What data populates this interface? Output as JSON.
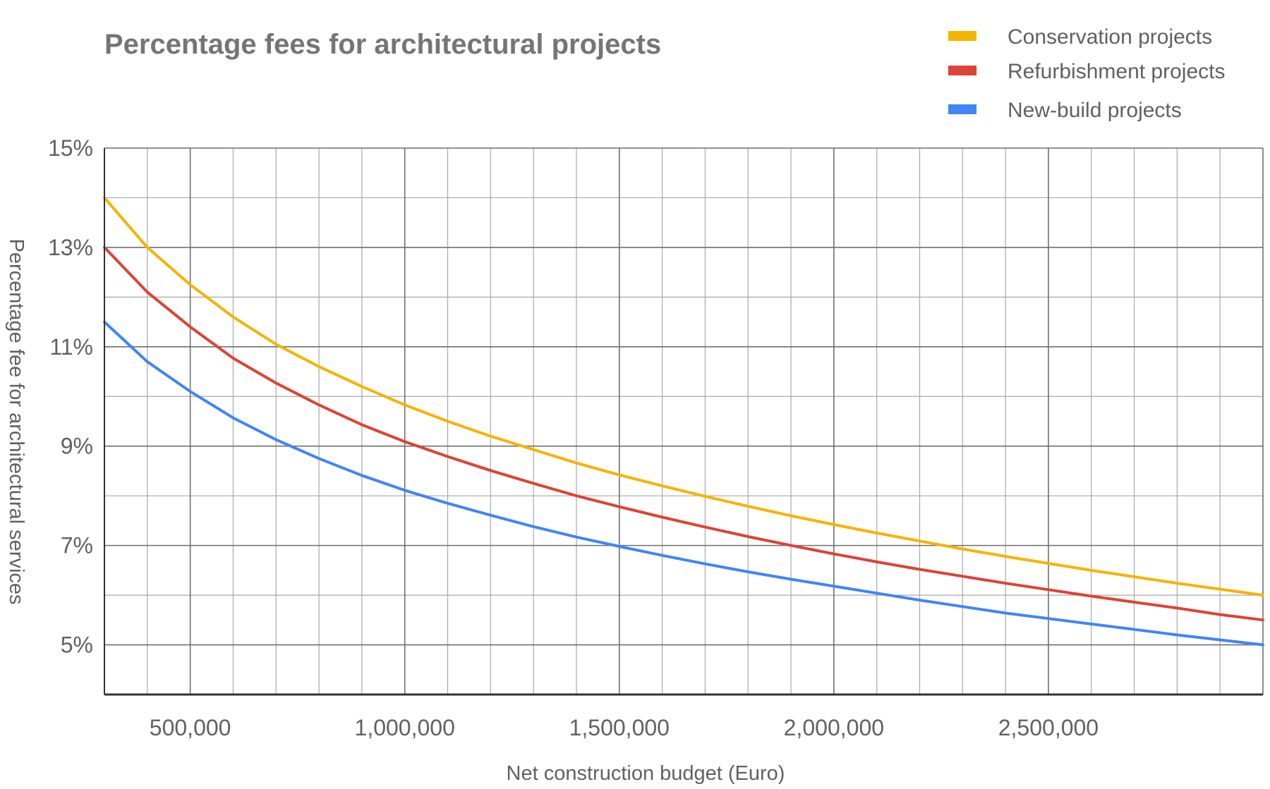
{
  "chart_data": {
    "type": "line",
    "title": "Percentage fees for architectural projects",
    "xlabel": "Net construction budget (Euro)",
    "ylabel": "Percentage fee for architectural services",
    "xlim": [
      300000,
      3000000
    ],
    "ylim": [
      4,
      15
    ],
    "x_ticks": [
      {
        "value": 500000,
        "label": "500,000"
      },
      {
        "value": 1000000,
        "label": "1,000,000"
      },
      {
        "value": 1500000,
        "label": "1,500,000"
      },
      {
        "value": 2000000,
        "label": "2,000,000"
      },
      {
        "value": 2500000,
        "label": "2,500,000"
      }
    ],
    "y_ticks": [
      {
        "value": 5,
        "label": "5%"
      },
      {
        "value": 7,
        "label": "7%"
      },
      {
        "value": 9,
        "label": "9%"
      },
      {
        "value": 11,
        "label": "11%"
      },
      {
        "value": 13,
        "label": "13%"
      },
      {
        "value": 15,
        "label": "15%"
      }
    ],
    "grid": true,
    "legend_position": "top-right",
    "x": [
      300000,
      400000,
      500000,
      600000,
      700000,
      800000,
      900000,
      1000000,
      1100000,
      1200000,
      1300000,
      1400000,
      1500000,
      1600000,
      1700000,
      1800000,
      1900000,
      2000000,
      2100000,
      2200000,
      2300000,
      2400000,
      2500000,
      2600000,
      2700000,
      2800000,
      2900000,
      3000000
    ],
    "series": [
      {
        "name": "Conservation projects",
        "color": "#f4b400",
        "values": [
          14.0,
          13.0,
          12.25,
          11.6,
          11.05,
          10.6,
          10.2,
          9.83,
          9.5,
          9.2,
          8.93,
          8.66,
          8.42,
          8.2,
          7.99,
          7.79,
          7.6,
          7.42,
          7.25,
          7.09,
          6.93,
          6.78,
          6.64,
          6.5,
          6.37,
          6.24,
          6.12,
          6.0
        ]
      },
      {
        "name": "Refurbishment projects",
        "color": "#db4437",
        "values": [
          13.0,
          12.1,
          11.4,
          10.77,
          10.27,
          9.83,
          9.43,
          9.09,
          8.79,
          8.51,
          8.25,
          8.0,
          7.78,
          7.57,
          7.37,
          7.18,
          7.0,
          6.83,
          6.67,
          6.52,
          6.38,
          6.24,
          6.11,
          5.98,
          5.86,
          5.74,
          5.61,
          5.5
        ]
      },
      {
        "name": "New-build projects",
        "color": "#4285f4",
        "values": [
          11.5,
          10.7,
          10.1,
          9.57,
          9.13,
          8.75,
          8.41,
          8.11,
          7.85,
          7.61,
          7.38,
          7.17,
          6.98,
          6.8,
          6.63,
          6.47,
          6.32,
          6.18,
          6.04,
          5.9,
          5.77,
          5.64,
          5.53,
          5.42,
          5.31,
          5.2,
          5.1,
          5.0
        ]
      }
    ]
  }
}
